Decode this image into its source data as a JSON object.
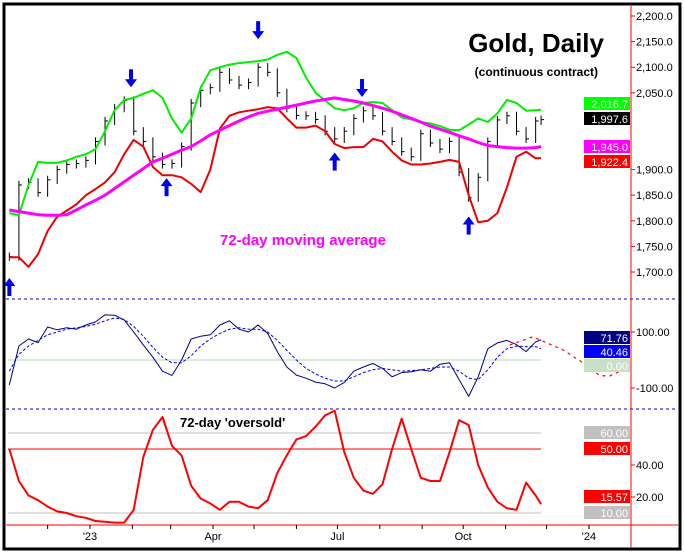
{
  "chart_data": [
    {
      "type": "line",
      "panel": "price",
      "title": "Gold, Daily",
      "subtitle": "(continuous contract)",
      "annotation": "72-day moving average",
      "ylim": [
        1660,
        2220
      ],
      "yticks": [
        "2,200.0",
        "2,150.0",
        "2,100.0",
        "2,050.0",
        "1,900.0",
        "1,850.0",
        "1,800.0",
        "1,750.0",
        "1,700.0"
      ],
      "ytick_values": [
        2200,
        2150,
        2100,
        2050,
        1900,
        1850,
        1800,
        1750,
        1700
      ],
      "dates": [
        "2022-11-03",
        "2022-11-10",
        "2022-11-17",
        "2022-11-24",
        "2022-12-01",
        "2022-12-08",
        "2022-12-15",
        "2022-12-22",
        "2022-12-29",
        "2023-01-05",
        "2023-01-12",
        "2023-01-19",
        "2023-01-26",
        "2023-02-02",
        "2023-02-09",
        "2023-02-16",
        "2023-02-23",
        "2023-03-02",
        "2023-03-09",
        "2023-03-16",
        "2023-03-23",
        "2023-03-30",
        "2023-04-06",
        "2023-04-13",
        "2023-04-20",
        "2023-04-27",
        "2023-05-04",
        "2023-05-11",
        "2023-05-18",
        "2023-05-25",
        "2023-06-01",
        "2023-06-08",
        "2023-06-15",
        "2023-06-22",
        "2023-06-29",
        "2023-07-06",
        "2023-07-13",
        "2023-07-20",
        "2023-07-27",
        "2023-08-03",
        "2023-08-10",
        "2023-08-17",
        "2023-08-24",
        "2023-08-31",
        "2023-09-07",
        "2023-09-14",
        "2023-09-21",
        "2023-09-28",
        "2023-10-05",
        "2023-10-12",
        "2023-10-19",
        "2023-10-26",
        "2023-11-02",
        "2023-11-09",
        "2023-11-16",
        "2023-11-23",
        "2023-11-27"
      ],
      "series": [
        {
          "key": "price",
          "color": "#000000",
          "values": [
            1730,
            1870,
            1875,
            1855,
            1880,
            1900,
            1910,
            1912,
            1918,
            1955,
            1995,
            2020,
            2035,
            1975,
            1955,
            1925,
            1910,
            1912,
            1945,
            2030,
            2055,
            2060,
            2090,
            2075,
            2065,
            2070,
            2100,
            2090,
            2050,
            2020,
            2006,
            2005,
            1998,
            1975,
            1960,
            1975,
            2000,
            2015,
            2005,
            1975,
            1955,
            1935,
            1925,
            1970,
            1952,
            1940,
            1955,
            1895,
            1845,
            1885,
            1955,
            1997,
            2005,
            1975,
            1960,
            1995,
            1997.6
          ]
        },
        {
          "key": "upper_band",
          "color": "#00ee00",
          "values": [
            1815,
            1811,
            1870,
            1915,
            1913,
            1913,
            1918,
            1925,
            1930,
            1940,
            1975,
            2016,
            2036,
            2040,
            2048,
            2055,
            2040,
            2000,
            1972,
            2000,
            2060,
            2094,
            2100,
            2105,
            2108,
            2110,
            2112,
            2115,
            2124,
            2130,
            2118,
            2080,
            2050,
            2035,
            2020,
            2016,
            2020,
            2030,
            2032,
            2030,
            2016,
            2002,
            1998,
            1993,
            1990,
            1985,
            1978,
            1977,
            1988,
            2000,
            1993,
            2010,
            2036,
            2030,
            2015,
            2016,
            2016.7
          ]
        },
        {
          "key": "lower_band",
          "color": "#ee0000",
          "values": [
            1729,
            1729,
            1710,
            1735,
            1780,
            1808,
            1820,
            1832,
            1850,
            1862,
            1875,
            1895,
            1930,
            1958,
            1945,
            1905,
            1889,
            1889,
            1885,
            1872,
            1856,
            1900,
            1980,
            2005,
            2012,
            2015,
            2018,
            2022,
            2020,
            2000,
            1982,
            1982,
            1986,
            1975,
            1950,
            1942,
            1944,
            1944,
            1960,
            1955,
            1935,
            1918,
            1910,
            1910,
            1912,
            1915,
            1919,
            1915,
            1850,
            1797,
            1800,
            1815,
            1865,
            1925,
            1935,
            1922,
            1922.4
          ]
        },
        {
          "key": "ma72",
          "color": "#ff00ff",
          "values": [
            1821,
            1818,
            1815,
            1812,
            1811,
            1811,
            1812,
            1821,
            1831,
            1840,
            1850,
            1863,
            1876,
            1889,
            1902,
            1915,
            1922,
            1930,
            1938,
            1945,
            1956,
            1968,
            1977,
            1986,
            1995,
            2003,
            2010,
            2014,
            2018,
            2022,
            2026,
            2030,
            2034,
            2037,
            2040,
            2037,
            2034,
            2030,
            2025,
            2020,
            2014,
            2007,
            2000,
            1993,
            1985,
            1979,
            1973,
            1966,
            1960,
            1953,
            1947,
            1945,
            1943,
            1942,
            1942,
            1943,
            1945
          ]
        }
      ],
      "last_values": [
        {
          "label": "2,016.7",
          "color": "#00ff00"
        },
        {
          "label": "1,997.6",
          "color": "#000000"
        },
        {
          "label": "1,945.0",
          "color": "#ff00ff"
        },
        {
          "label": "1,922.4",
          "color": "#ff0000"
        }
      ],
      "markers": [
        {
          "date": "2022-11-03",
          "direction": "up",
          "price": 1700
        },
        {
          "date": "2023-01-31",
          "direction": "down",
          "price": 2049
        },
        {
          "date": "2023-02-26",
          "direction": "up",
          "price": 1895
        },
        {
          "date": "2023-05-04",
          "direction": "down",
          "price": 2143
        },
        {
          "date": "2023-06-29",
          "direction": "up",
          "price": 1945
        },
        {
          "date": "2023-07-19",
          "direction": "down",
          "price": 2030
        },
        {
          "date": "2023-10-05",
          "direction": "up",
          "price": 1820
        }
      ],
      "marker_color": "#0000ee"
    },
    {
      "type": "line",
      "panel": "oscillator",
      "ylim": [
        -180,
        210
      ],
      "yticks": [
        "100.00",
        "-100.00"
      ],
      "ytick_values": [
        100,
        -100
      ],
      "reference": 0,
      "series": [
        {
          "key": "oscillator",
          "color": "#000080",
          "values": [
            -89,
            50,
            75,
            62,
            118,
            108,
            115,
            110,
            125,
            136,
            161,
            160,
            143,
            100,
            54,
            10,
            -40,
            -55,
            0,
            75,
            85,
            90,
            125,
            140,
            110,
            100,
            125,
            95,
            30,
            -25,
            -54,
            -65,
            -79,
            -85,
            -100,
            -80,
            -40,
            -25,
            -12,
            -30,
            -60,
            -45,
            -42,
            -35,
            -40,
            -15,
            -10,
            -70,
            -130,
            -60,
            40,
            61,
            70,
            55,
            30,
            65,
            71.76
          ]
        },
        {
          "key": "signal",
          "color": "#0000ff",
          "style": "dashed",
          "values": [
            -40,
            20,
            50,
            70,
            90,
            100,
            110,
            115,
            120,
            128,
            140,
            150,
            145,
            120,
            85,
            45,
            10,
            -10,
            -10,
            15,
            50,
            75,
            95,
            110,
            115,
            110,
            110,
            100,
            70,
            35,
            0,
            -30,
            -50,
            -65,
            -75,
            -75,
            -60,
            -45,
            -35,
            -30,
            -35,
            -40,
            -38,
            -35,
            -30,
            -25,
            -25,
            -40,
            -65,
            -70,
            -35,
            10,
            40,
            50,
            48,
            48,
            40.46
          ]
        }
      ],
      "projection": {
        "color": "#ff0000",
        "style": "dotted",
        "points": [
          [
            "2023-11-04",
            54
          ],
          [
            "2023-11-21",
            83
          ],
          [
            "2023-12-13",
            36
          ],
          [
            "2023-12-28",
            -11
          ],
          [
            "2024-01-09",
            -56
          ],
          [
            "2024-01-16",
            -57
          ],
          [
            "2024-01-31",
            -24
          ]
        ]
      },
      "last_values": [
        {
          "label": "71.76",
          "color": "#000080"
        },
        {
          "label": "40.46",
          "color": "#0000ff"
        },
        {
          "label": "0.00",
          "color": "#c8e0c8"
        }
      ]
    },
    {
      "type": "line",
      "panel": "cycle",
      "annotation": "72-day 'oversold'",
      "ylim": [
        -2,
        78
      ],
      "yticks": [
        "40.00",
        "20.00"
      ],
      "ytick_values": [
        40,
        20
      ],
      "reference_lines": [
        {
          "value": 60,
          "color": "#c0c0c0"
        },
        {
          "value": 50,
          "color": "#ff0000"
        },
        {
          "value": 10,
          "color": "#c0c0c0"
        }
      ],
      "series": [
        {
          "key": "cycle",
          "color": "#ff0000",
          "values": [
            50,
            30,
            21,
            18,
            14,
            11,
            10,
            8,
            7,
            5,
            4.5,
            4,
            4,
            12,
            45,
            62,
            70,
            52,
            46,
            27,
            19,
            16,
            12,
            17,
            17,
            14,
            13,
            18,
            35,
            46,
            56,
            58,
            64,
            71,
            74,
            48,
            32,
            24,
            22,
            28,
            50,
            69,
            50,
            32,
            30,
            30,
            48,
            68,
            65,
            40,
            26,
            17,
            13,
            12,
            29,
            21,
            15.57
          ]
        }
      ],
      "last_values": [
        {
          "label": "60.00",
          "color": "#c0c0c0"
        },
        {
          "label": "50.00",
          "color": "#ff0000"
        },
        {
          "label": "15.57",
          "color": "#ff0000"
        },
        {
          "label": "10.00",
          "color": "#c0c0c0"
        }
      ]
    }
  ],
  "x_axis": {
    "tick_labels": [
      {
        "label": "'23",
        "date": "2023-01-01"
      },
      {
        "label": "Apr",
        "date": "2023-04-01"
      },
      {
        "label": "Jul",
        "date": "2023-07-01"
      },
      {
        "label": "Oct",
        "date": "2023-10-01"
      },
      {
        "label": "'24",
        "date": "2024-01-01"
      }
    ]
  }
}
